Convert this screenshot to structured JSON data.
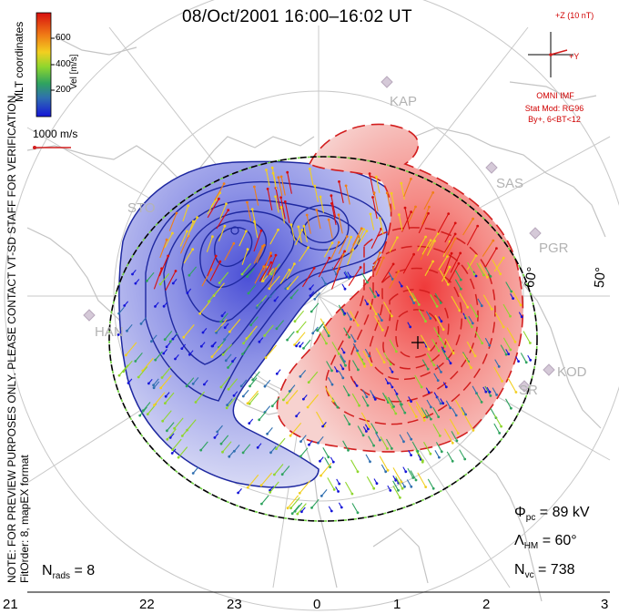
{
  "title": "08/Oct/2001 16:00–16:02 UT",
  "notice": "NOTE: FOR PREVIEW PURPOSES ONLY. PLEASE CONTACT VT-SD STAFF FOR VERIFICATION.",
  "fit_info": "FitOrder: 8, mapEX format",
  "coords_label": "MLT coordinates",
  "colorbar": {
    "label": "Vel [m/s]",
    "ticks": [
      "600",
      "400",
      "200"
    ]
  },
  "scale_vector_label": "1000 m/s",
  "imf": {
    "bz_label": "+Z (10 nT)",
    "by_label": "+Y",
    "source": "OMNI IMF",
    "stat_mod": "Stat Mod: RG96",
    "condition": "By+, 6<BT<12"
  },
  "stats": {
    "phi_pc_label": "Φ",
    "phi_pc_sub": "pc",
    "phi_pc_value": "= 89 kV",
    "lambda_hm_label": "Λ",
    "lambda_hm_sub": "HM",
    "lambda_hm_value": "= 60°",
    "n_vc_label": "N",
    "n_vc_sub": "vc",
    "n_vc_value": "= 738",
    "n_rads_label": "N",
    "n_rads_sub": "rads",
    "n_rads_value": "= 8"
  },
  "mlt_ticks": [
    "21",
    "22",
    "23",
    "0",
    "1",
    "2",
    "3"
  ],
  "lat_labels": [
    "60°",
    "50°"
  ],
  "stations": [
    "KAP",
    "SAS",
    "PGR",
    "KOD",
    "SR",
    "STO",
    "HAN"
  ],
  "colors": {
    "positive": "#d21e1e",
    "negative": "#1e28a0",
    "hmb": "#000000",
    "grid": "#c8c8c8",
    "coast": "#c4c4c4"
  }
}
